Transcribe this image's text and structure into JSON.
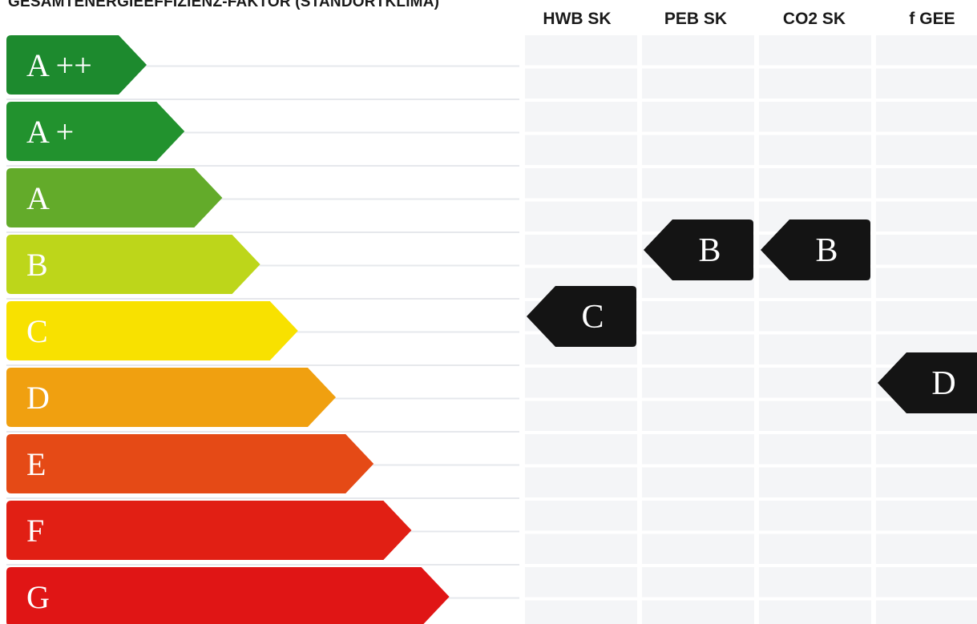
{
  "label": {
    "title": "GESAMTENERGIEEFFIZIENZ-FAKTOR (STANDORTKLIMA)",
    "columns": [
      "HWB SK",
      "PEB SK",
      "CO2 SK",
      "f GEE"
    ],
    "classes": [
      {
        "name": "A ++",
        "color": "#1d8a2e"
      },
      {
        "name": "A +",
        "color": "#22922e"
      },
      {
        "name": "A",
        "color": "#63ab2a"
      },
      {
        "name": "B",
        "color": "#bdd61a"
      },
      {
        "name": "C",
        "color": "#f8e100"
      },
      {
        "name": "D",
        "color": "#f0a010"
      },
      {
        "name": "E",
        "color": "#e54a16"
      },
      {
        "name": "F",
        "color": "#e11f14"
      },
      {
        "name": "G",
        "color": "#e01515"
      }
    ],
    "ratings": [
      {
        "column": "HWB SK",
        "class": "C"
      },
      {
        "column": "PEB SK",
        "class": "B"
      },
      {
        "column": "CO2 SK",
        "class": "B"
      },
      {
        "column": "f GEE",
        "class": "D"
      }
    ],
    "colors": {
      "marker": "#141414",
      "marker_text": "#ffffff",
      "class_text": "#ffffff",
      "grid_line": "#e6e8ec",
      "grid_gap": "#f4f5f7"
    }
  }
}
